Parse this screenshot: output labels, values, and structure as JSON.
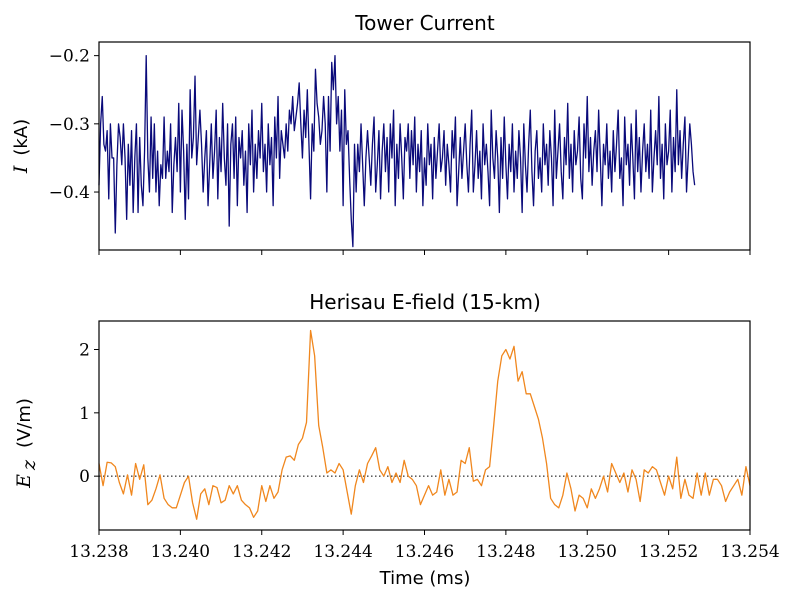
{
  "chart_data": [
    {
      "type": "line",
      "title": "Tower Current",
      "ylabel_symbol": "I",
      "ylabel_unit": "(kA)",
      "xlim": [
        13.238,
        13.254
      ],
      "ylim": [
        -0.485,
        -0.18
      ],
      "yticks": [
        -0.4,
        -0.3,
        -0.2
      ],
      "ytick_labels": [
        "−0.4",
        "−0.3",
        "−0.2"
      ],
      "xticks": [
        13.238,
        13.24,
        13.242,
        13.244,
        13.246,
        13.248,
        13.25,
        13.252,
        13.254
      ],
      "color": "#0a0a7a",
      "series": [
        {
          "x_start": 13.238,
          "x_step": 4e-05,
          "values": [
            -0.39,
            -0.3,
            -0.26,
            -0.33,
            -0.34,
            -0.31,
            -0.41,
            -0.3,
            -0.35,
            -0.35,
            -0.46,
            -0.36,
            -0.3,
            -0.32,
            -0.36,
            -0.3,
            -0.35,
            -0.44,
            -0.33,
            -0.39,
            -0.31,
            -0.43,
            -0.35,
            -0.3,
            -0.43,
            -0.32,
            -0.39,
            -0.42,
            -0.34,
            -0.2,
            -0.35,
            -0.4,
            -0.29,
            -0.38,
            -0.3,
            -0.4,
            -0.34,
            -0.42,
            -0.36,
            -0.38,
            -0.29,
            -0.38,
            -0.34,
            -0.37,
            -0.3,
            -0.43,
            -0.36,
            -0.32,
            -0.37,
            -0.27,
            -0.4,
            -0.28,
            -0.34,
            -0.44,
            -0.33,
            -0.41,
            -0.25,
            -0.35,
            -0.32,
            -0.23,
            -0.36,
            -0.32,
            -0.28,
            -0.33,
            -0.4,
            -0.35,
            -0.31,
            -0.42,
            -0.36,
            -0.3,
            -0.38,
            -0.34,
            -0.28,
            -0.41,
            -0.32,
            -0.37,
            -0.27,
            -0.35,
            -0.39,
            -0.3,
            -0.45,
            -0.33,
            -0.3,
            -0.38,
            -0.29,
            -0.42,
            -0.32,
            -0.35,
            -0.31,
            -0.39,
            -0.34,
            -0.43,
            -0.3,
            -0.36,
            -0.28,
            -0.4,
            -0.33,
            -0.38,
            -0.31,
            -0.35,
            -0.27,
            -0.37,
            -0.33,
            -0.4,
            -0.3,
            -0.36,
            -0.32,
            -0.42,
            -0.29,
            -0.35,
            -0.26,
            -0.38,
            -0.31,
            -0.33,
            -0.35,
            -0.3,
            -0.34,
            -0.28,
            -0.3,
            -0.26,
            -0.31,
            -0.29,
            -0.27,
            -0.24,
            -0.3,
            -0.35,
            -0.28,
            -0.32,
            -0.25,
            -0.33,
            -0.41,
            -0.3,
            -0.34,
            -0.22,
            -0.27,
            -0.29,
            -0.33,
            -0.31,
            -0.26,
            -0.3,
            -0.4,
            -0.26,
            -0.34,
            -0.21,
            -0.25,
            -0.2,
            -0.3,
            -0.26,
            -0.34,
            -0.28,
            -0.42,
            -0.25,
            -0.33,
            -0.31,
            -0.38,
            -0.44,
            -0.48,
            -0.33,
            -0.4,
            -0.33,
            -0.37,
            -0.3,
            -0.36,
            -0.42,
            -0.35,
            -0.31,
            -0.35,
            -0.39,
            -0.33,
            -0.29,
            -0.4,
            -0.36,
            -0.31,
            -0.41,
            -0.34,
            -0.3,
            -0.37,
            -0.32,
            -0.4,
            -0.3,
            -0.35,
            -0.28,
            -0.42,
            -0.33,
            -0.38,
            -0.3,
            -0.35,
            -0.41,
            -0.32,
            -0.34,
            -0.3,
            -0.38,
            -0.31,
            -0.36,
            -0.29,
            -0.4,
            -0.33,
            -0.37,
            -0.31,
            -0.42,
            -0.35,
            -0.39,
            -0.3,
            -0.36,
            -0.33,
            -0.41,
            -0.32,
            -0.38,
            -0.34,
            -0.3,
            -0.37,
            -0.35,
            -0.31,
            -0.39,
            -0.33,
            -0.36,
            -0.4,
            -0.31,
            -0.35,
            -0.29,
            -0.42,
            -0.37,
            -0.32,
            -0.38,
            -0.34,
            -0.3,
            -0.36,
            -0.4,
            -0.33,
            -0.28,
            -0.4,
            -0.36,
            -0.31,
            -0.38,
            -0.34,
            -0.41,
            -0.3,
            -0.36,
            -0.33,
            -0.37,
            -0.42,
            -0.28,
            -0.35,
            -0.38,
            -0.31,
            -0.35,
            -0.43,
            -0.32,
            -0.38,
            -0.29,
            -0.36,
            -0.41,
            -0.33,
            -0.37,
            -0.3,
            -0.4,
            -0.34,
            -0.38,
            -0.31,
            -0.35,
            -0.43,
            -0.3,
            -0.36,
            -0.4,
            -0.33,
            -0.28,
            -0.37,
            -0.42,
            -0.34,
            -0.31,
            -0.38,
            -0.35,
            -0.4,
            -0.3,
            -0.36,
            -0.33,
            -0.39,
            -0.31,
            -0.35,
            -0.42,
            -0.28,
            -0.38,
            -0.34,
            -0.3,
            -0.37,
            -0.41,
            -0.32,
            -0.36,
            -0.27,
            -0.38,
            -0.33,
            -0.4,
            -0.31,
            -0.36,
            -0.34,
            -0.29,
            -0.38,
            -0.41,
            -0.3,
            -0.35,
            -0.26,
            -0.37,
            -0.32,
            -0.39,
            -0.34,
            -0.31,
            -0.37,
            -0.28,
            -0.35,
            -0.42,
            -0.33,
            -0.36,
            -0.3,
            -0.38,
            -0.34,
            -0.4,
            -0.31,
            -0.37,
            -0.33,
            -0.28,
            -0.38,
            -0.35,
            -0.42,
            -0.29,
            -0.36,
            -0.33,
            -0.39,
            -0.3,
            -0.35,
            -0.41,
            -0.28,
            -0.37,
            -0.32,
            -0.4,
            -0.34,
            -0.3,
            -0.37,
            -0.33,
            -0.38,
            -0.28,
            -0.4,
            -0.35,
            -0.31,
            -0.36,
            -0.26,
            -0.38,
            -0.33,
            -0.41,
            -0.3,
            -0.36,
            -0.34,
            -0.28,
            -0.4,
            -0.32,
            -0.37,
            -0.25,
            -0.36,
            -0.31,
            -0.38,
            -0.33,
            -0.29,
            -0.4,
            -0.35,
            -0.3,
            -0.33,
            -0.37,
            -0.39
          ]
        }
      ]
    },
    {
      "type": "line",
      "title": "Herisau E-field (15-km)",
      "ylabel_symbol": "E",
      "ylabel_sub": "z",
      "ylabel_unit": "(V/m)",
      "xlabel": "Time (ms)",
      "xlim": [
        13.238,
        13.254
      ],
      "ylim": [
        -0.85,
        2.45
      ],
      "yticks": [
        0,
        1,
        2
      ],
      "ytick_labels": [
        "0",
        "1",
        "2"
      ],
      "xticks": [
        13.238,
        13.24,
        13.242,
        13.244,
        13.246,
        13.248,
        13.25,
        13.252,
        13.254
      ],
      "xtick_labels": [
        "13.238",
        "13.240",
        "13.242",
        "13.244",
        "13.246",
        "13.248",
        "13.250",
        "13.252",
        "13.254"
      ],
      "zero_line": "dotted",
      "color": "#f0871e",
      "series": [
        {
          "x": [
            13.238,
            13.2381,
            13.2382,
            13.2383,
            13.2384,
            13.2385,
            13.2386,
            13.2387,
            13.2388,
            13.2389,
            13.239,
            13.2391,
            13.2392,
            13.2393,
            13.2394,
            13.2395,
            13.2396,
            13.2397,
            13.2398,
            13.2399,
            13.24,
            13.2401,
            13.2402,
            13.2403,
            13.2404,
            13.2405,
            13.2406,
            13.2407,
            13.2408,
            13.2409,
            13.241,
            13.2411,
            13.2412,
            13.2413,
            13.2414,
            13.2415,
            13.2416,
            13.2417,
            13.2418,
            13.2419,
            13.242,
            13.2421,
            13.2422,
            13.2423,
            13.2424,
            13.2425,
            13.2426,
            13.2427,
            13.2428,
            13.2429,
            13.243,
            13.2431,
            13.2432,
            13.2433,
            13.2434,
            13.2435,
            13.2436,
            13.2437,
            13.2438,
            13.2439,
            13.244,
            13.2441,
            13.2442,
            13.2443,
            13.2444,
            13.2445,
            13.2446,
            13.2447,
            13.2448,
            13.2449,
            13.245,
            13.2451,
            13.2452,
            13.2453,
            13.2454,
            13.2455,
            13.2456,
            13.2457,
            13.2458,
            13.2459,
            13.246,
            13.2461,
            13.2462,
            13.2463,
            13.2464,
            13.2465,
            13.2466,
            13.2467,
            13.2468,
            13.2469,
            13.247,
            13.2471,
            13.2472,
            13.2473,
            13.2474,
            13.2475,
            13.2476,
            13.2477,
            13.2478,
            13.2479,
            13.248,
            13.2481,
            13.2482,
            13.2483,
            13.2484,
            13.2485,
            13.2486,
            13.2487,
            13.2488,
            13.2489,
            13.249,
            13.2491,
            13.2492,
            13.2493,
            13.2494,
            13.2495,
            13.2496,
            13.2497,
            13.2498,
            13.2499,
            13.25,
            13.2501,
            13.2502,
            13.2503,
            13.2504,
            13.2505,
            13.2506,
            13.2507,
            13.2508,
            13.2509,
            13.251,
            13.2511,
            13.2512,
            13.2513,
            13.2514,
            13.2515,
            13.2516,
            13.2517,
            13.2518,
            13.2519,
            13.252,
            13.2521,
            13.2522,
            13.2523,
            13.2524,
            13.2525,
            13.2526,
            13.2527,
            13.2528,
            13.2529,
            13.253,
            13.2531,
            13.2532,
            13.2533,
            13.2534,
            13.2535,
            13.2536,
            13.2537,
            13.2538,
            13.2539,
            13.254
          ],
          "values": [
            0.2,
            -0.15,
            0.22,
            0.21,
            0.15,
            -0.1,
            -0.28,
            0.02,
            -0.3,
            0.2,
            -0.05,
            0.18,
            -0.45,
            -0.38,
            -0.2,
            0.02,
            -0.35,
            -0.45,
            -0.5,
            -0.5,
            -0.3,
            -0.1,
            0.0,
            -0.42,
            -0.68,
            -0.28,
            -0.2,
            -0.45,
            -0.15,
            -0.18,
            -0.42,
            -0.38,
            -0.15,
            -0.28,
            -0.15,
            -0.38,
            -0.45,
            -0.5,
            -0.65,
            -0.55,
            -0.15,
            -0.4,
            -0.15,
            -0.35,
            -0.25,
            0.1,
            0.3,
            0.32,
            0.25,
            0.5,
            0.6,
            0.85,
            2.3,
            1.9,
            0.8,
            0.45,
            0.05,
            0.1,
            0.05,
            0.2,
            0.1,
            -0.25,
            -0.6,
            -0.15,
            0.1,
            -0.1,
            0.2,
            0.32,
            0.45,
            0.1,
            0.0,
            0.15,
            -0.1,
            0.05,
            -0.1,
            0.25,
            0.0,
            -0.05,
            -0.15,
            -0.45,
            -0.3,
            -0.15,
            -0.3,
            -0.25,
            0.1,
            -0.3,
            -0.05,
            -0.3,
            -0.25,
            0.25,
            0.2,
            0.45,
            -0.08,
            -0.05,
            -0.15,
            0.1,
            0.15,
            0.8,
            1.5,
            1.9,
            2.0,
            1.85,
            2.05,
            1.5,
            1.65,
            1.3,
            1.3,
            1.1,
            0.9,
            0.6,
            0.2,
            -0.35,
            -0.45,
            -0.5,
            -0.3,
            0.05,
            -0.2,
            -0.55,
            -0.3,
            -0.35,
            -0.5,
            -0.2,
            -0.35,
            -0.2,
            0.0,
            -0.25,
            0.2,
            0.05,
            -0.1,
            0.05,
            -0.25,
            0.1,
            -0.05,
            -0.4,
            0.1,
            0.05,
            0.15,
            0.1,
            -0.1,
            -0.3,
            0.0,
            -0.2,
            0.3,
            -0.35,
            -0.05,
            -0.3,
            -0.35,
            0.05,
            -0.3,
            0.05,
            -0.3,
            -0.05,
            -0.05,
            -0.15,
            -0.4,
            -0.25,
            -0.15,
            -0.05,
            -0.3,
            0.15,
            -0.15
          ]
        }
      ]
    }
  ]
}
